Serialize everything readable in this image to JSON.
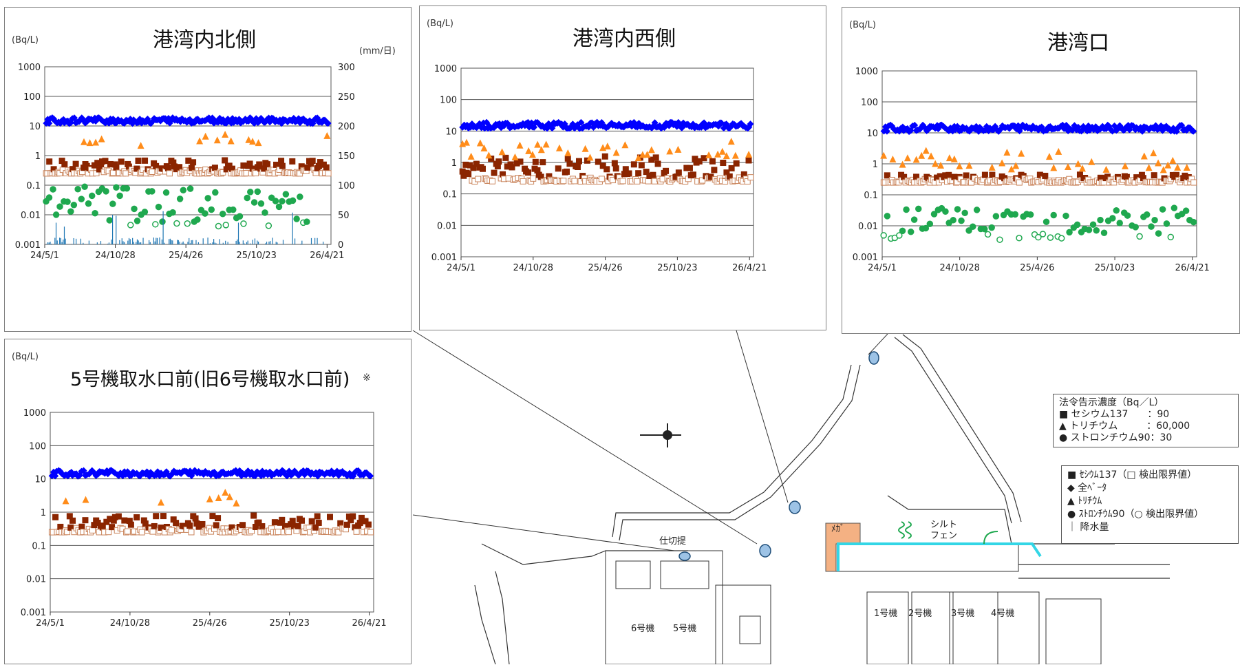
{
  "charts": {
    "north": {
      "title": "港湾内北側",
      "unit_left": "(Bq/L)",
      "unit_right": "(mm/日)"
    },
    "west": {
      "title": "港湾内西側",
      "unit_left": "(Bq/L)"
    },
    "mouth": {
      "title": "港湾口",
      "unit_left": "(Bq/L)"
    },
    "unit5": {
      "title": "5号機取水口前(旧6号機取水口前)",
      "unit_left": "(Bq/L)",
      "note": "※"
    }
  },
  "chart_data": [
    {
      "type": "scatter",
      "id": "north",
      "title": "港湾内北側",
      "ylabel": "(Bq/L)",
      "y2label": "(mm/日)",
      "yscale": "log",
      "ylim": [
        0.001,
        1000
      ],
      "y2lim": [
        0,
        300
      ],
      "yticks": [
        "0.001",
        "0.01",
        "0.1",
        "1",
        "10",
        "100",
        "1000"
      ],
      "y2ticks": [
        "0",
        "50",
        "100",
        "150",
        "200",
        "250",
        "300"
      ],
      "xticks": [
        "24/5/1",
        "24/10/28",
        "25/4/26",
        "25/10/23",
        "26/4/21"
      ],
      "xlim": [
        "24/5/1",
        "26/5/1"
      ],
      "grid": true,
      "series": [
        {
          "name": "全ベータ",
          "marker": "diamond",
          "color": "#0000ff",
          "range": [
            12,
            19
          ],
          "start": "24/5/1",
          "end": "26/4/25"
        },
        {
          "name": "セシウム137",
          "marker": "square",
          "color": "#8b2500",
          "range": [
            0.25,
            0.7
          ],
          "start": "24/5/1",
          "end": "26/4/25"
        },
        {
          "name": "トリチウム",
          "marker": "triangle",
          "color": "#ff8c1a",
          "values": [
            [
              100,
              2.8
            ],
            [
              115,
              2.6
            ],
            [
              130,
              2.7
            ],
            [
              145,
              3.5
            ],
            [
              245,
              2.1
            ],
            [
              395,
              3.0
            ],
            [
              410,
              4.3
            ],
            [
              440,
              3.2
            ],
            [
              460,
              5.0
            ],
            [
              475,
              3.0
            ],
            [
              520,
              3.3
            ],
            [
              530,
              2.9
            ],
            [
              545,
              2.6
            ],
            [
              720,
              4.5
            ]
          ]
        },
        {
          "name": "ストロンチウム90",
          "marker": "circle",
          "color": "#1fa84f",
          "range": [
            0.004,
            0.09
          ],
          "start": "24/5/1",
          "end": "26/3/1"
        },
        {
          "name": "降水量",
          "marker": "bar",
          "color": "#1f77b4",
          "range": [
            0,
            60
          ]
        }
      ]
    },
    {
      "type": "scatter",
      "id": "west",
      "title": "港湾内西側",
      "ylabel": "(Bq/L)",
      "yscale": "log",
      "ylim": [
        0.001,
        1000
      ],
      "yticks": [
        "0.001",
        "0.01",
        "0.1",
        "1",
        "10",
        "100",
        "1000"
      ],
      "xticks": [
        "24/5/1",
        "24/10/28",
        "25/4/26",
        "25/10/23",
        "26/4/21"
      ],
      "grid": true,
      "series": [
        {
          "name": "全ベータ",
          "marker": "diamond",
          "color": "#0000ff",
          "range": [
            12,
            19
          ]
        },
        {
          "name": "セシウム137",
          "marker": "square",
          "color": "#8b2500",
          "range": [
            0.25,
            1.6
          ]
        },
        {
          "name": "トリチウム",
          "marker": "triangle",
          "color": "#ff8c1a",
          "range": [
            1.3,
            5
          ]
        }
      ]
    },
    {
      "type": "scatter",
      "id": "mouth",
      "title": "港湾口",
      "ylabel": "(Bq/L)",
      "yscale": "log",
      "ylim": [
        0.001,
        1000
      ],
      "yticks": [
        "0.001",
        "0.01",
        "0.1",
        "1",
        "10",
        "100",
        "1000"
      ],
      "xticks": [
        "24/5/1",
        "24/10/28",
        "25/4/26",
        "25/10/23",
        "26/4/21"
      ],
      "grid": true,
      "series": [
        {
          "name": "全ベータ",
          "marker": "diamond",
          "color": "#0000ff",
          "range": [
            11,
            18
          ]
        },
        {
          "name": "セシウム137",
          "marker": "square",
          "color": "#8b2500",
          "range": [
            0.25,
            0.45
          ]
        },
        {
          "name": "トリチウム",
          "marker": "triangle",
          "color": "#ff8c1a",
          "range": [
            0.6,
            2.6
          ]
        },
        {
          "name": "ストロンチウム90",
          "marker": "circle",
          "color": "#1fa84f",
          "range": [
            0.003,
            0.04
          ]
        }
      ]
    },
    {
      "type": "scatter",
      "id": "unit5",
      "title": "5号機取水口前(旧6号機取水口前)",
      "ylabel": "(Bq/L)",
      "yscale": "log",
      "ylim": [
        0.001,
        1000
      ],
      "yticks": [
        "0.001",
        "0.01",
        "0.1",
        "1",
        "10",
        "100",
        "1000"
      ],
      "xticks": [
        "24/5/1",
        "24/10/28",
        "25/4/26",
        "25/10/23",
        "26/4/21"
      ],
      "grid": true,
      "series": [
        {
          "name": "全ベータ",
          "marker": "diamond",
          "color": "#0000ff",
          "range": [
            12,
            18
          ]
        },
        {
          "name": "セシウム137",
          "marker": "square",
          "color": "#8b2500",
          "range": [
            0.25,
            0.8
          ]
        },
        {
          "name": "トリチウム",
          "marker": "triangle",
          "color": "#ff8c1a",
          "values": [
            [
              35,
              2.1
            ],
            [
              80,
              2.3
            ],
            [
              250,
              1.9
            ],
            [
              360,
              2.4
            ],
            [
              380,
              2.6
            ],
            [
              395,
              3.8
            ],
            [
              405,
              2.8
            ],
            [
              420,
              1.8
            ]
          ]
        }
      ]
    }
  ],
  "legend_limits": {
    "title": "法令告示濃度（Bq／L）",
    "rows": [
      "■ セシウム137　　：90",
      "▲ トリチウム　　　：60,000",
      "● ストロンチウム90：30"
    ]
  },
  "legend_series": {
    "rows": [
      "■ ｾｼｳﾑ137（□ 検出限界値）",
      "◆ 全ﾍﾞｰﾀ",
      "▲ ﾄﾘﾁｳﾑ",
      "● ｽﾄﾛﾝﾁｳﾑ90（○ 検出限界値）",
      "｜ 降水量"
    ]
  },
  "map_labels": {
    "partition": "仕切提",
    "megafloat": "ﾒｶﾞ",
    "silt1": "シルト",
    "silt2": "フェン",
    "unit1": "1号機",
    "unit2": "2号機",
    "unit3": "3号機",
    "unit4": "4号機",
    "unit5": "5号機",
    "unit6": "6号機"
  },
  "colors": {
    "beta": "#0000ff",
    "cs": "#8b2500",
    "h3": "#ff8c1a",
    "sr": "#1fa84f",
    "rain": "#1f77b4",
    "boundary": "#33d6e6",
    "mega": "#f4b183"
  }
}
